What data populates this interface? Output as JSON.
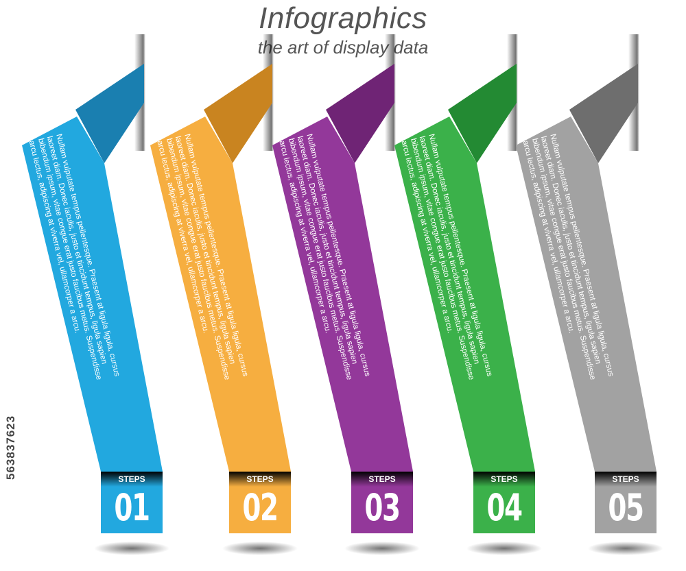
{
  "title": "Infographics",
  "subtitle": "the art of display data",
  "stock_id": "563837623",
  "panels": [
    {
      "color": "#22a8df",
      "dark": "#1a7fb0",
      "steps_label": "STEPS",
      "number": "01",
      "lines": [
        "Nullam vulputate tempus pellentesque. Praesent at ligula ligula, cursus",
        "laoreet diam. Donec iaculis, justo et tincidunt tempus, ligula sapien",
        "bibendum ipsum, vitae congue erat justo faucibus metus. Suspendisse",
        "arcu lectus, adipiscing at viverra vel, ullamcorper a arcu."
      ]
    },
    {
      "color": "#f6ae40",
      "dark": "#c98420",
      "steps_label": "STEPS",
      "number": "02",
      "lines": [
        "Nullam vulputate tempus pellentesque. Praesent at ligula ligula, cursus",
        "laoreet diam. Donec iaculis, justo et tincidunt tempus, ligula sapien",
        "bibendum ipsum, vitae congue erat justo faucibus metus. Suspendisse",
        "arcu lectus, adipiscing at viverra vel, ullamcorper a arcu."
      ]
    },
    {
      "color": "#93389a",
      "dark": "#6f2475",
      "steps_label": "STEPS",
      "number": "03",
      "lines": [
        "Nullam vulputate tempus pellentesque. Praesent at ligula ligula, cursus",
        "laoreet diam. Donec iaculis, justo et tincidunt tempus, ligula sapien",
        "bibendum ipsum, vitae congue erat justo faucibus metus. Suspendisse",
        "arcu lectus, adipiscing at viverra vel, ullamcorper a arcu."
      ]
    },
    {
      "color": "#3bb14a",
      "dark": "#238a33",
      "steps_label": "STEPS",
      "number": "04",
      "lines": [
        "Nullam vulputate tempus pellentesque. Praesent at ligula ligula, cursus",
        "laoreet diam. Donec iaculis, justo et tincidunt tempus, ligula sapien",
        "bibendum ipsum, vitae congue erat justo faucibus metus. Suspendisse",
        "arcu lectus, adipiscing at viverra vel, ullamcorper a arcu."
      ]
    },
    {
      "color": "#a2a2a2",
      "dark": "#6e6e6e",
      "steps_label": "STEPS",
      "number": "05",
      "lines": [
        "Nullam vulputate tempus pellentesque. Praesent at ligula ligula, cursus",
        "laoreet diam. Donec iaculis, justo et tincidunt tempus, ligula sapien",
        "bibendum ipsum, vitae congue erat justo faucibus metus. Suspendisse",
        "arcu lectus, adipiscing at viverra vel, ullamcorper a arcu."
      ]
    }
  ]
}
